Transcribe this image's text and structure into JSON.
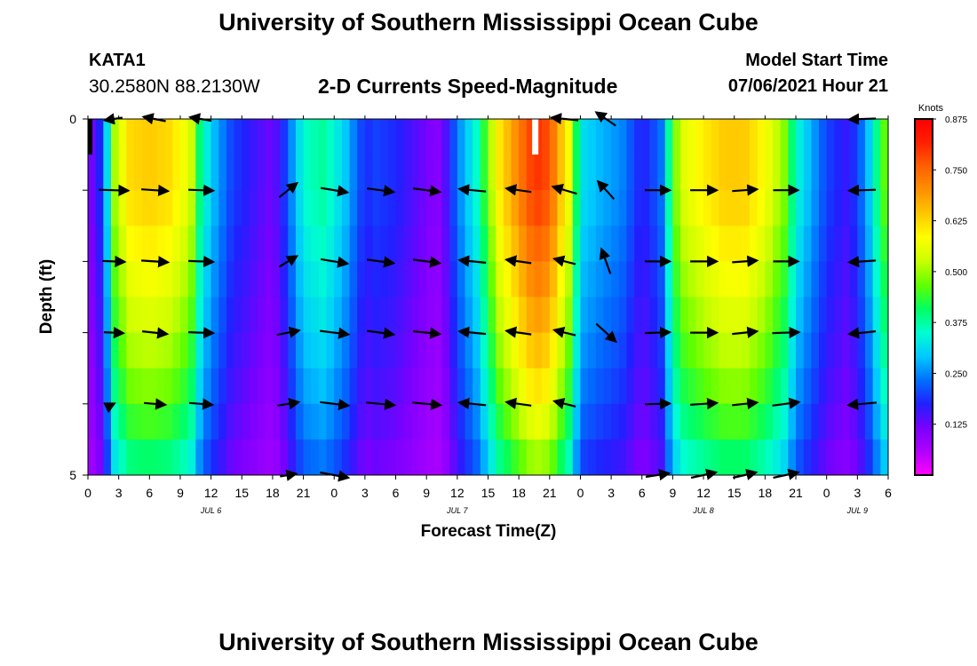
{
  "header": {
    "title": "University of Southern Mississippi Ocean Cube",
    "station": {
      "id": "KATA1",
      "coords": "30.2580N  88.2130W"
    },
    "plot_title": "2-D Currents Speed-Magnitude",
    "model_start_label": "Model Start Time",
    "model_start_value": "07/06/2021 Hour 21"
  },
  "footer": {
    "title": "University of Southern Mississippi Ocean Cube"
  },
  "chart_data": {
    "type": "heatmap",
    "title": "2-D Currents Speed-Magnitude",
    "xlabel": "Forecast Time(Z)",
    "ylabel": "Depth (ft)",
    "x_ticks": [
      "0",
      "3",
      "6",
      "9",
      "12",
      "15",
      "18",
      "21",
      "0",
      "3",
      "6",
      "9",
      "12",
      "15",
      "18",
      "21",
      "0",
      "3",
      "6",
      "9",
      "12",
      "15",
      "18",
      "21",
      "0",
      "3",
      "6"
    ],
    "date_labels": [
      {
        "label": "JUL 6",
        "hour": 12
      },
      {
        "label": "JUL 7",
        "hour": 36
      },
      {
        "label": "JUL 8",
        "hour": 60
      },
      {
        "label": "JUL 9",
        "hour": 75
      }
    ],
    "x_range_hours": [
      0,
      78
    ],
    "y_ticks": [
      "0",
      "5"
    ],
    "ylim": [
      0,
      5
    ],
    "depth_levels_ft": [
      0,
      1,
      2,
      3,
      4,
      5
    ],
    "colorbar": {
      "unit": "Knots",
      "range": [
        0,
        0.875
      ],
      "tick_labels": [
        "0.875",
        "0.750",
        "0.625",
        "0.500",
        "0.375",
        "0.250",
        "0.125"
      ],
      "tick_values": [
        0.875,
        0.75,
        0.625,
        0.5,
        0.375,
        0.25,
        0.125
      ],
      "colors": [
        "#ff00ff",
        "#b000ff",
        "#7a00ff",
        "#2020ff",
        "#0070ff",
        "#00c8ff",
        "#00ffd0",
        "#00ff60",
        "#60ff00",
        "#c8ff00",
        "#ffff00",
        "#ffc800",
        "#ff9000",
        "#ff6000",
        "#ff2000",
        "#ff0000"
      ]
    },
    "speed_profile": {
      "description": "surface speed (knots) vs forecast hour, scaled with depth by depth_factor",
      "hours": [
        0,
        1.5,
        2.5,
        4,
        6,
        8,
        10,
        11,
        12,
        13,
        14,
        16,
        18,
        19,
        21,
        23,
        25,
        27,
        28,
        30,
        32,
        34,
        35,
        36,
        38,
        40,
        42,
        43,
        44,
        45,
        46,
        47,
        48,
        50,
        52,
        54,
        55,
        56,
        57,
        58,
        60,
        62,
        64,
        66,
        68,
        69,
        70,
        71,
        72,
        74,
        75,
        76,
        77,
        78
      ],
      "knots": [
        0.1,
        0.2,
        0.5,
        0.62,
        0.64,
        0.62,
        0.55,
        0.38,
        0.3,
        0.25,
        0.2,
        0.16,
        0.12,
        0.18,
        0.35,
        0.38,
        0.3,
        0.18,
        0.2,
        0.18,
        0.14,
        0.1,
        0.15,
        0.24,
        0.36,
        0.6,
        0.72,
        0.78,
        0.8,
        0.77,
        0.66,
        0.56,
        0.32,
        0.28,
        0.25,
        0.17,
        0.2,
        0.24,
        0.46,
        0.55,
        0.6,
        0.64,
        0.64,
        0.58,
        0.48,
        0.35,
        0.3,
        0.25,
        0.2,
        0.16,
        0.2,
        0.28,
        0.4,
        0.5
      ],
      "depth_factor": [
        1.0,
        1.0,
        0.92,
        0.84,
        0.74,
        0.6
      ]
    },
    "arrows": [
      {
        "hour": 2.5,
        "rows": [
          [
            -20,
            3
          ],
          [
            33,
            1
          ],
          [
            25,
            1
          ],
          [
            22,
            1
          ],
          [
            2,
            -1
          ],
          [
            0,
            0
          ]
        ]
      },
      {
        "hour": 6.5,
        "rows": [
          [
            -25,
            -5
          ],
          [
            30,
            2
          ],
          [
            30,
            2
          ],
          [
            28,
            3
          ],
          [
            24,
            2
          ],
          [
            0,
            0
          ]
        ]
      },
      {
        "hour": 11,
        "rows": [
          [
            -24,
            -4
          ],
          [
            28,
            1
          ],
          [
            28,
            1
          ],
          [
            28,
            1
          ],
          [
            26,
            2
          ],
          [
            0,
            0
          ]
        ]
      },
      {
        "hour": 19.5,
        "rows": [
          [
            0,
            0
          ],
          [
            20,
            -16
          ],
          [
            20,
            -12
          ],
          [
            25,
            -5
          ],
          [
            24,
            -4
          ],
          [
            18,
            -3
          ]
        ]
      },
      {
        "hour": 24,
        "rows": [
          [
            0,
            0
          ],
          [
            30,
            5
          ],
          [
            30,
            5
          ],
          [
            32,
            4
          ],
          [
            32,
            4
          ],
          [
            32,
            6
          ]
        ]
      },
      {
        "hour": 28.5,
        "rows": [
          [
            0,
            0
          ],
          [
            30,
            4
          ],
          [
            30,
            4
          ],
          [
            30,
            4
          ],
          [
            32,
            3
          ],
          [
            0,
            0
          ]
        ]
      },
      {
        "hour": 33,
        "rows": [
          [
            0,
            0
          ],
          [
            30,
            4
          ],
          [
            30,
            4
          ],
          [
            30,
            3
          ],
          [
            32,
            3
          ],
          [
            0,
            0
          ]
        ]
      },
      {
        "hour": 37.5,
        "rows": [
          [
            0,
            0
          ],
          [
            -30,
            -3
          ],
          [
            -30,
            -3
          ],
          [
            -30,
            -3
          ],
          [
            -30,
            -3
          ],
          [
            0,
            0
          ]
        ]
      },
      {
        "hour": 42,
        "rows": [
          [
            0,
            0
          ],
          [
            -28,
            -4
          ],
          [
            -28,
            -4
          ],
          [
            -28,
            -4
          ],
          [
            -28,
            -4
          ],
          [
            0,
            0
          ]
        ]
      },
      {
        "hour": 46.5,
        "rows": [
          [
            -30,
            -3
          ],
          [
            -27,
            -8
          ],
          [
            -24,
            -6
          ],
          [
            -24,
            -6
          ],
          [
            -24,
            -6
          ],
          [
            0,
            0
          ]
        ]
      },
      {
        "hour": 50.5,
        "rows": [
          [
            -22,
            -15
          ],
          [
            -18,
            -20
          ],
          [
            -10,
            -28
          ],
          [
            22,
            20
          ],
          [
            0,
            0
          ],
          [
            0,
            0
          ]
        ]
      },
      {
        "hour": 55.5,
        "rows": [
          [
            0,
            0
          ],
          [
            28,
            0
          ],
          [
            28,
            0
          ],
          [
            28,
            -1
          ],
          [
            28,
            -1
          ],
          [
            26,
            -4
          ]
        ]
      },
      {
        "hour": 60,
        "rows": [
          [
            0,
            0
          ],
          [
            30,
            0
          ],
          [
            30,
            0
          ],
          [
            30,
            0
          ],
          [
            30,
            -2
          ],
          [
            28,
            -6
          ]
        ]
      },
      {
        "hour": 64,
        "rows": [
          [
            0,
            0
          ],
          [
            28,
            -2
          ],
          [
            28,
            -2
          ],
          [
            28,
            -3
          ],
          [
            28,
            -3
          ],
          [
            26,
            -6
          ]
        ]
      },
      {
        "hour": 68,
        "rows": [
          [
            0,
            0
          ],
          [
            28,
            0
          ],
          [
            28,
            0
          ],
          [
            30,
            -1
          ],
          [
            30,
            -4
          ],
          [
            28,
            -6
          ]
        ]
      },
      {
        "hour": 75.5,
        "rows": [
          [
            -30,
            1
          ],
          [
            -30,
            1
          ],
          [
            -30,
            2
          ],
          [
            -30,
            3
          ],
          [
            -32,
            3
          ],
          [
            0,
            0
          ]
        ]
      }
    ]
  }
}
